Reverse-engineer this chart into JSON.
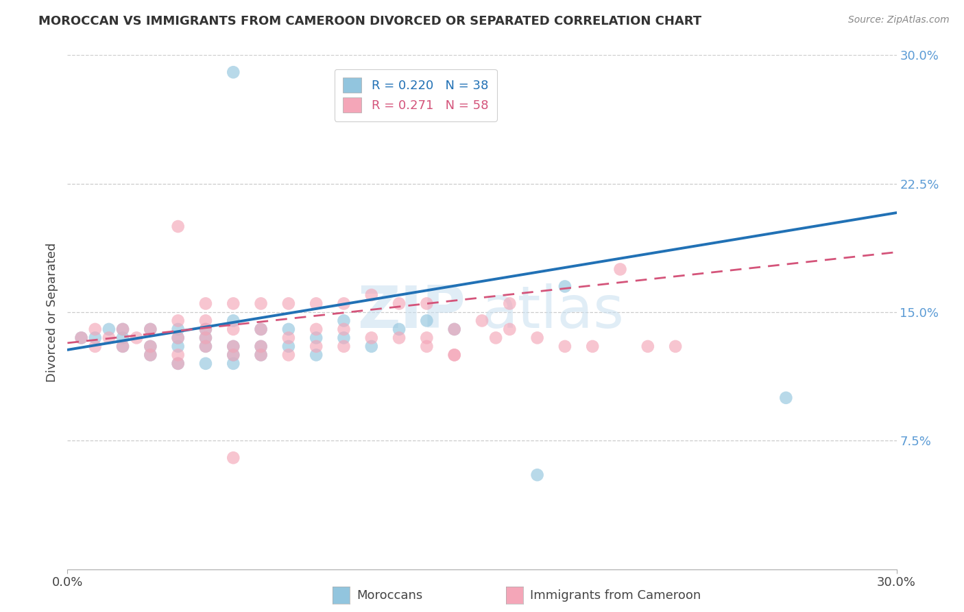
{
  "title": "MOROCCAN VS IMMIGRANTS FROM CAMEROON DIVORCED OR SEPARATED CORRELATION CHART",
  "source": "Source: ZipAtlas.com",
  "ylabel": "Divorced or Separated",
  "xlim": [
    0.0,
    0.3
  ],
  "ylim": [
    0.0,
    0.3
  ],
  "ytick_vals": [
    0.075,
    0.15,
    0.225,
    0.3
  ],
  "ytick_labels": [
    "7.5%",
    "15.0%",
    "22.5%",
    "30.0%"
  ],
  "xtick_vals": [
    0.0,
    0.3
  ],
  "xtick_labels": [
    "0.0%",
    "30.0%"
  ],
  "watermark": "ZIPatlas",
  "legend_entry1_r": "0.220",
  "legend_entry1_n": "38",
  "legend_entry2_r": "0.271",
  "legend_entry2_n": "58",
  "legend_label1": "Moroccans",
  "legend_label2": "Immigrants from Cameroon",
  "color_blue": "#92c5de",
  "color_pink": "#f4a6b8",
  "line_color_blue": "#2171b5",
  "line_color_pink": "#d4547a",
  "blue_line_start_y": 0.128,
  "blue_line_end_y": 0.208,
  "pink_line_start_y": 0.132,
  "pink_line_end_y": 0.185,
  "blue_x": [
    0.005,
    0.01,
    0.015,
    0.02,
    0.02,
    0.02,
    0.03,
    0.03,
    0.03,
    0.04,
    0.04,
    0.04,
    0.04,
    0.05,
    0.05,
    0.05,
    0.05,
    0.06,
    0.06,
    0.06,
    0.06,
    0.07,
    0.07,
    0.07,
    0.08,
    0.08,
    0.09,
    0.09,
    0.1,
    0.1,
    0.11,
    0.12,
    0.13,
    0.14,
    0.17,
    0.18,
    0.26,
    0.06
  ],
  "blue_y": [
    0.135,
    0.135,
    0.14,
    0.13,
    0.135,
    0.14,
    0.125,
    0.13,
    0.14,
    0.12,
    0.13,
    0.135,
    0.14,
    0.12,
    0.13,
    0.135,
    0.14,
    0.12,
    0.125,
    0.13,
    0.145,
    0.125,
    0.13,
    0.14,
    0.13,
    0.14,
    0.125,
    0.135,
    0.135,
    0.145,
    0.13,
    0.14,
    0.145,
    0.14,
    0.055,
    0.165,
    0.1,
    0.29
  ],
  "pink_x": [
    0.005,
    0.01,
    0.01,
    0.015,
    0.02,
    0.02,
    0.025,
    0.03,
    0.03,
    0.03,
    0.04,
    0.04,
    0.04,
    0.04,
    0.05,
    0.05,
    0.05,
    0.05,
    0.05,
    0.06,
    0.06,
    0.06,
    0.06,
    0.07,
    0.07,
    0.07,
    0.07,
    0.08,
    0.08,
    0.08,
    0.09,
    0.09,
    0.09,
    0.1,
    0.1,
    0.1,
    0.11,
    0.11,
    0.12,
    0.12,
    0.13,
    0.13,
    0.14,
    0.14,
    0.15,
    0.155,
    0.16,
    0.16,
    0.17,
    0.18,
    0.19,
    0.2,
    0.21,
    0.22,
    0.13,
    0.14,
    0.06,
    0.04
  ],
  "pink_y": [
    0.135,
    0.13,
    0.14,
    0.135,
    0.13,
    0.14,
    0.135,
    0.125,
    0.13,
    0.14,
    0.12,
    0.125,
    0.135,
    0.145,
    0.13,
    0.135,
    0.14,
    0.145,
    0.155,
    0.125,
    0.13,
    0.14,
    0.155,
    0.125,
    0.13,
    0.14,
    0.155,
    0.125,
    0.135,
    0.155,
    0.13,
    0.14,
    0.155,
    0.13,
    0.14,
    0.155,
    0.135,
    0.16,
    0.135,
    0.155,
    0.135,
    0.155,
    0.125,
    0.14,
    0.145,
    0.135,
    0.14,
    0.155,
    0.135,
    0.13,
    0.13,
    0.175,
    0.13,
    0.13,
    0.13,
    0.125,
    0.065,
    0.2
  ]
}
